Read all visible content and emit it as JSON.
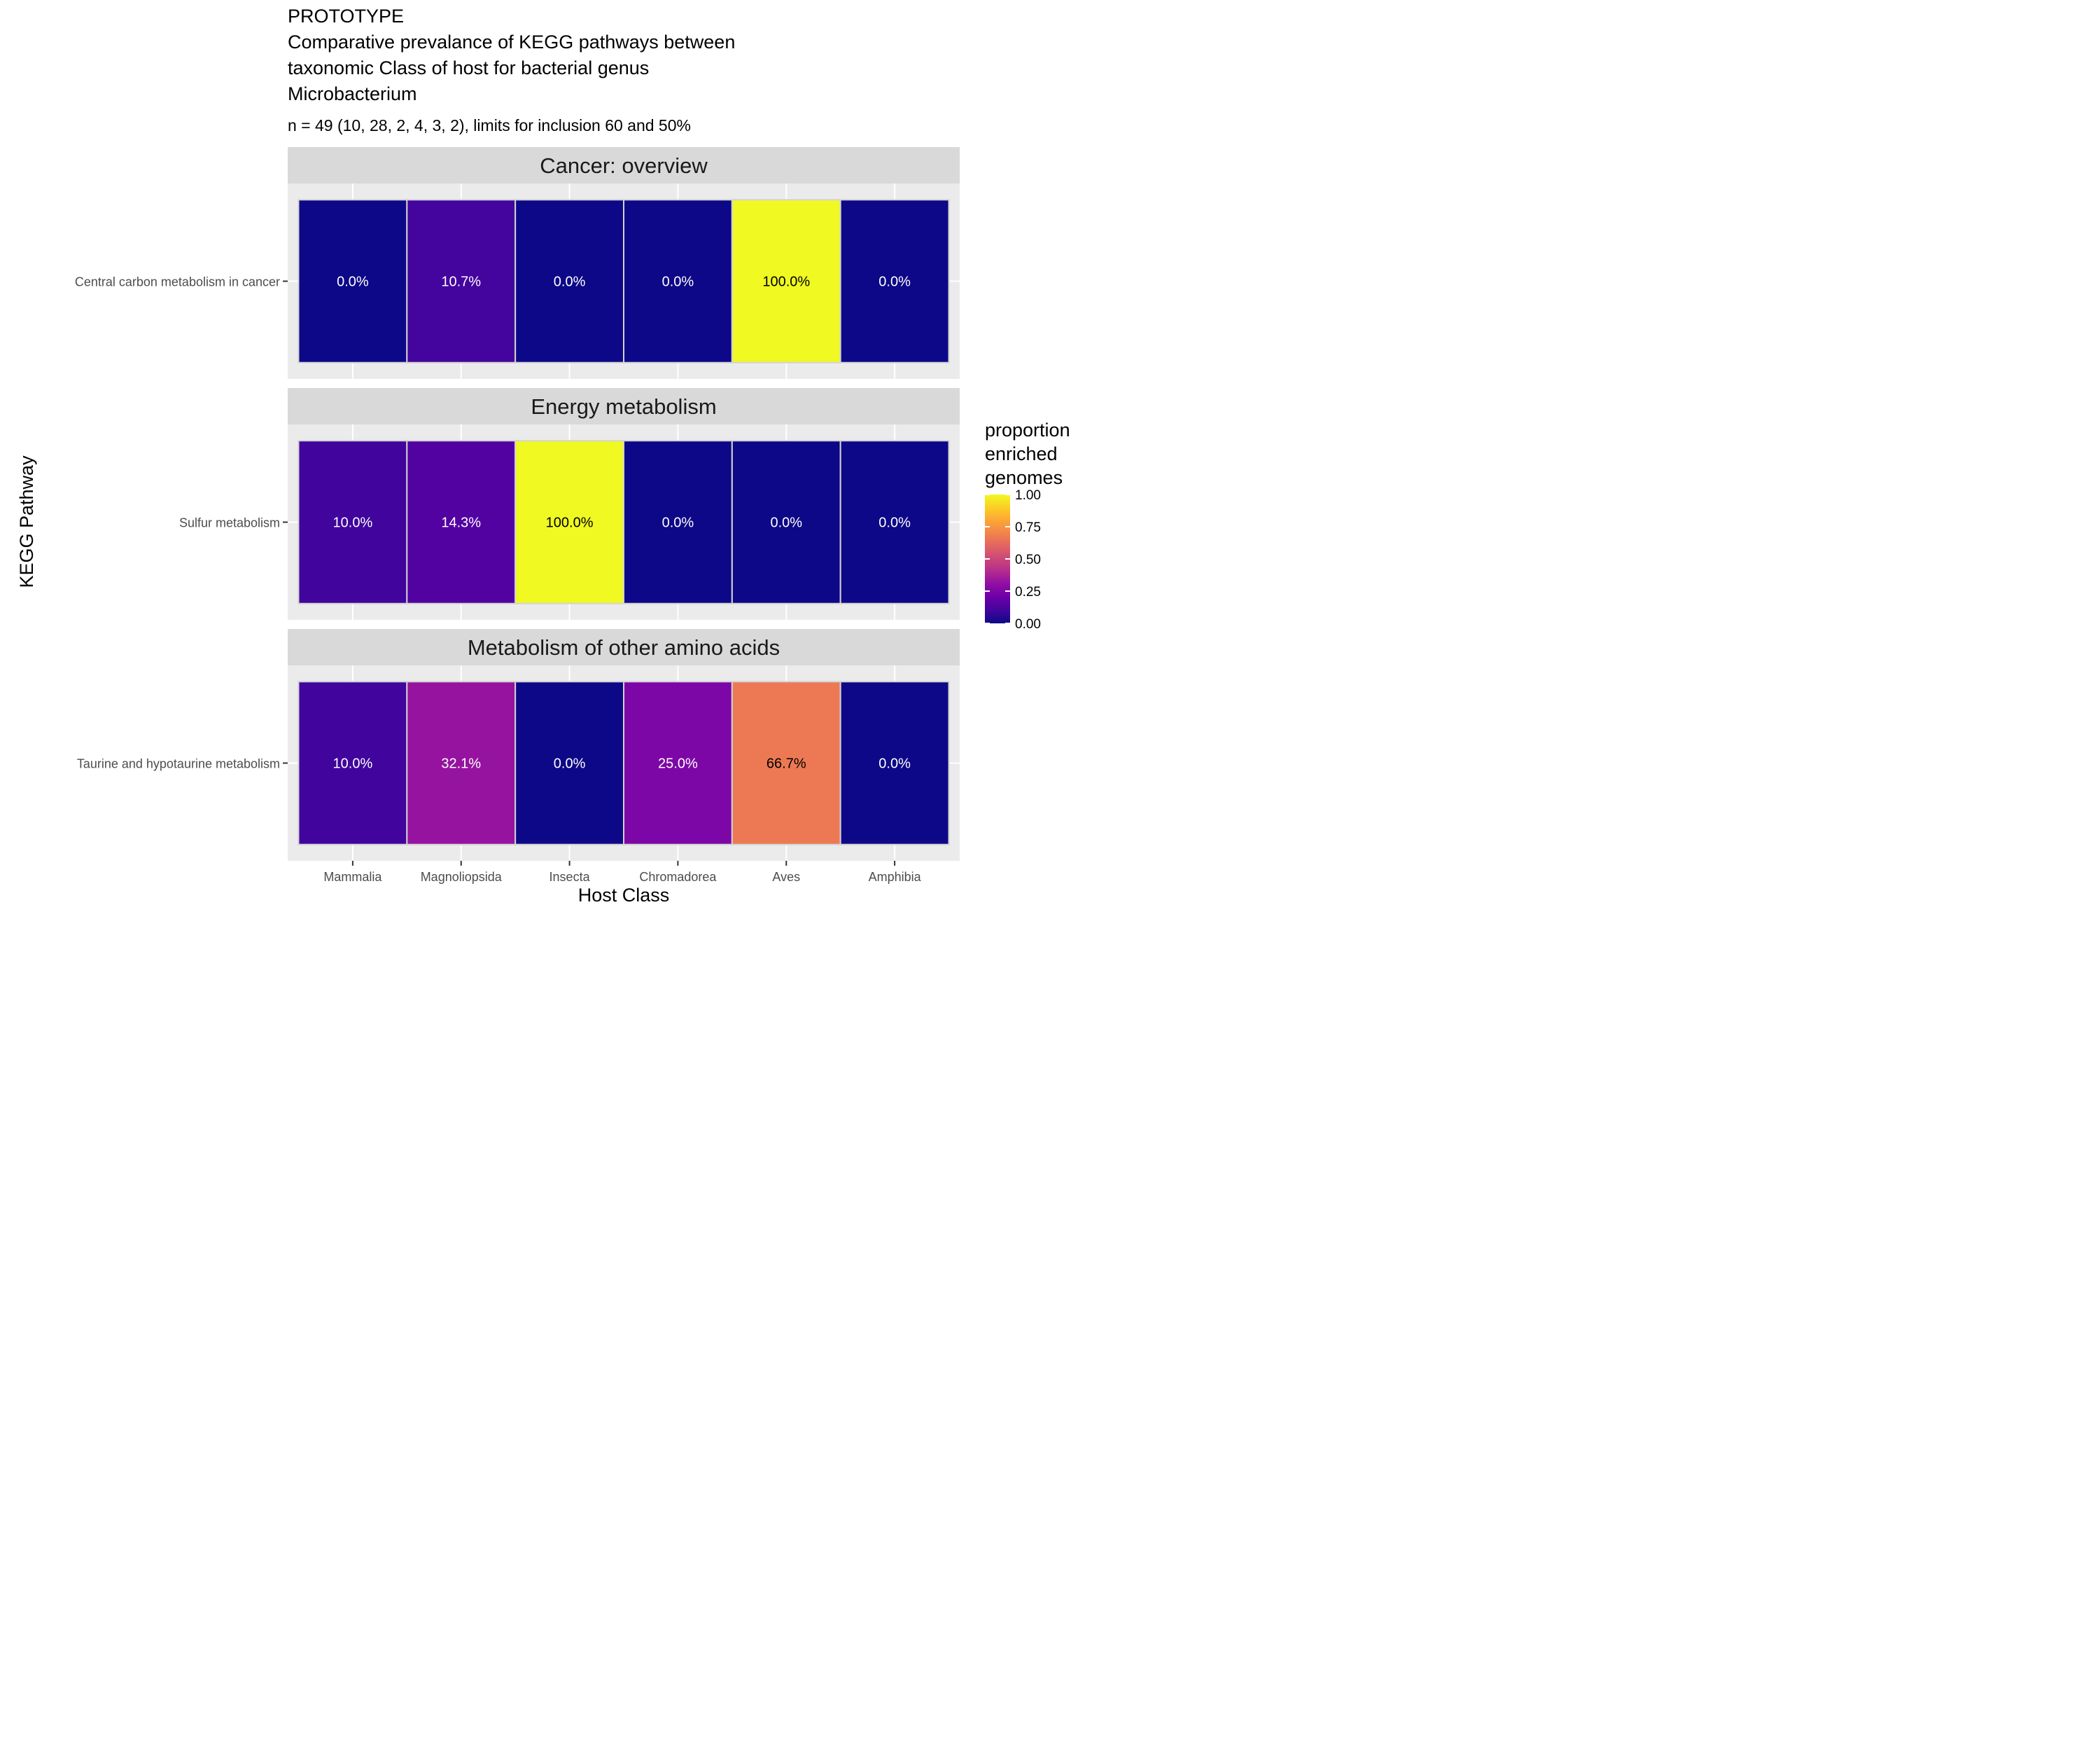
{
  "chart_data": {
    "type": "heatmap",
    "title": "PROTOTYPE\nComparative prevalance of KEGG pathways between\ntaxonomic Class of host for bacterial genus\nMicrobacterium",
    "title_lines": [
      "PROTOTYPE",
      "Comparative prevalance of KEGG pathways between",
      "taxonomic Class of host for bacterial genus",
      "Microbacterium"
    ],
    "subtitle": "n = 49 (10, 28, 2, 4, 3, 2), limits for inclusion 60 and 50%",
    "xlabel": "Host Class",
    "ylabel": "KEGG Pathway",
    "x_categories": [
      "Mammalia",
      "Magnoliopsida",
      "Insecta",
      "Chromadorea",
      "Aves",
      "Amphibia"
    ],
    "facets": [
      {
        "name": "Cancer: overview",
        "rows": [
          {
            "pathway": "Central carbon metabolism in cancer",
            "values": [
              0.0,
              0.107,
              0.0,
              0.0,
              1.0,
              0.0
            ],
            "labels": [
              "0.0%",
              "10.7%",
              "0.0%",
              "0.0%",
              "100.0%",
              "0.0%"
            ]
          }
        ]
      },
      {
        "name": "Energy metabolism",
        "rows": [
          {
            "pathway": "Sulfur metabolism",
            "values": [
              0.1,
              0.143,
              1.0,
              0.0,
              0.0,
              0.0
            ],
            "labels": [
              "10.0%",
              "14.3%",
              "100.0%",
              "0.0%",
              "0.0%",
              "0.0%"
            ]
          }
        ]
      },
      {
        "name": "Metabolism of other amino acids",
        "rows": [
          {
            "pathway": "Taurine and hypotaurine metabolism",
            "values": [
              0.1,
              0.321,
              0.0,
              0.25,
              0.667,
              0.0
            ],
            "labels": [
              "10.0%",
              "32.1%",
              "0.0%",
              "25.0%",
              "66.7%",
              "0.0%"
            ]
          }
        ]
      }
    ],
    "legend": {
      "title": "proportion\nenriched\ngenomes",
      "title_lines": [
        "proportion",
        "enriched",
        "genomes"
      ],
      "ticks": [
        "1.00",
        "0.75",
        "0.50",
        "0.25",
        "0.00"
      ],
      "tick_values": [
        1.0,
        0.75,
        0.5,
        0.25,
        0.0
      ],
      "placement": "right",
      "colorscale": "plasma"
    },
    "value_range": [
      0,
      1
    ],
    "grid": true
  }
}
